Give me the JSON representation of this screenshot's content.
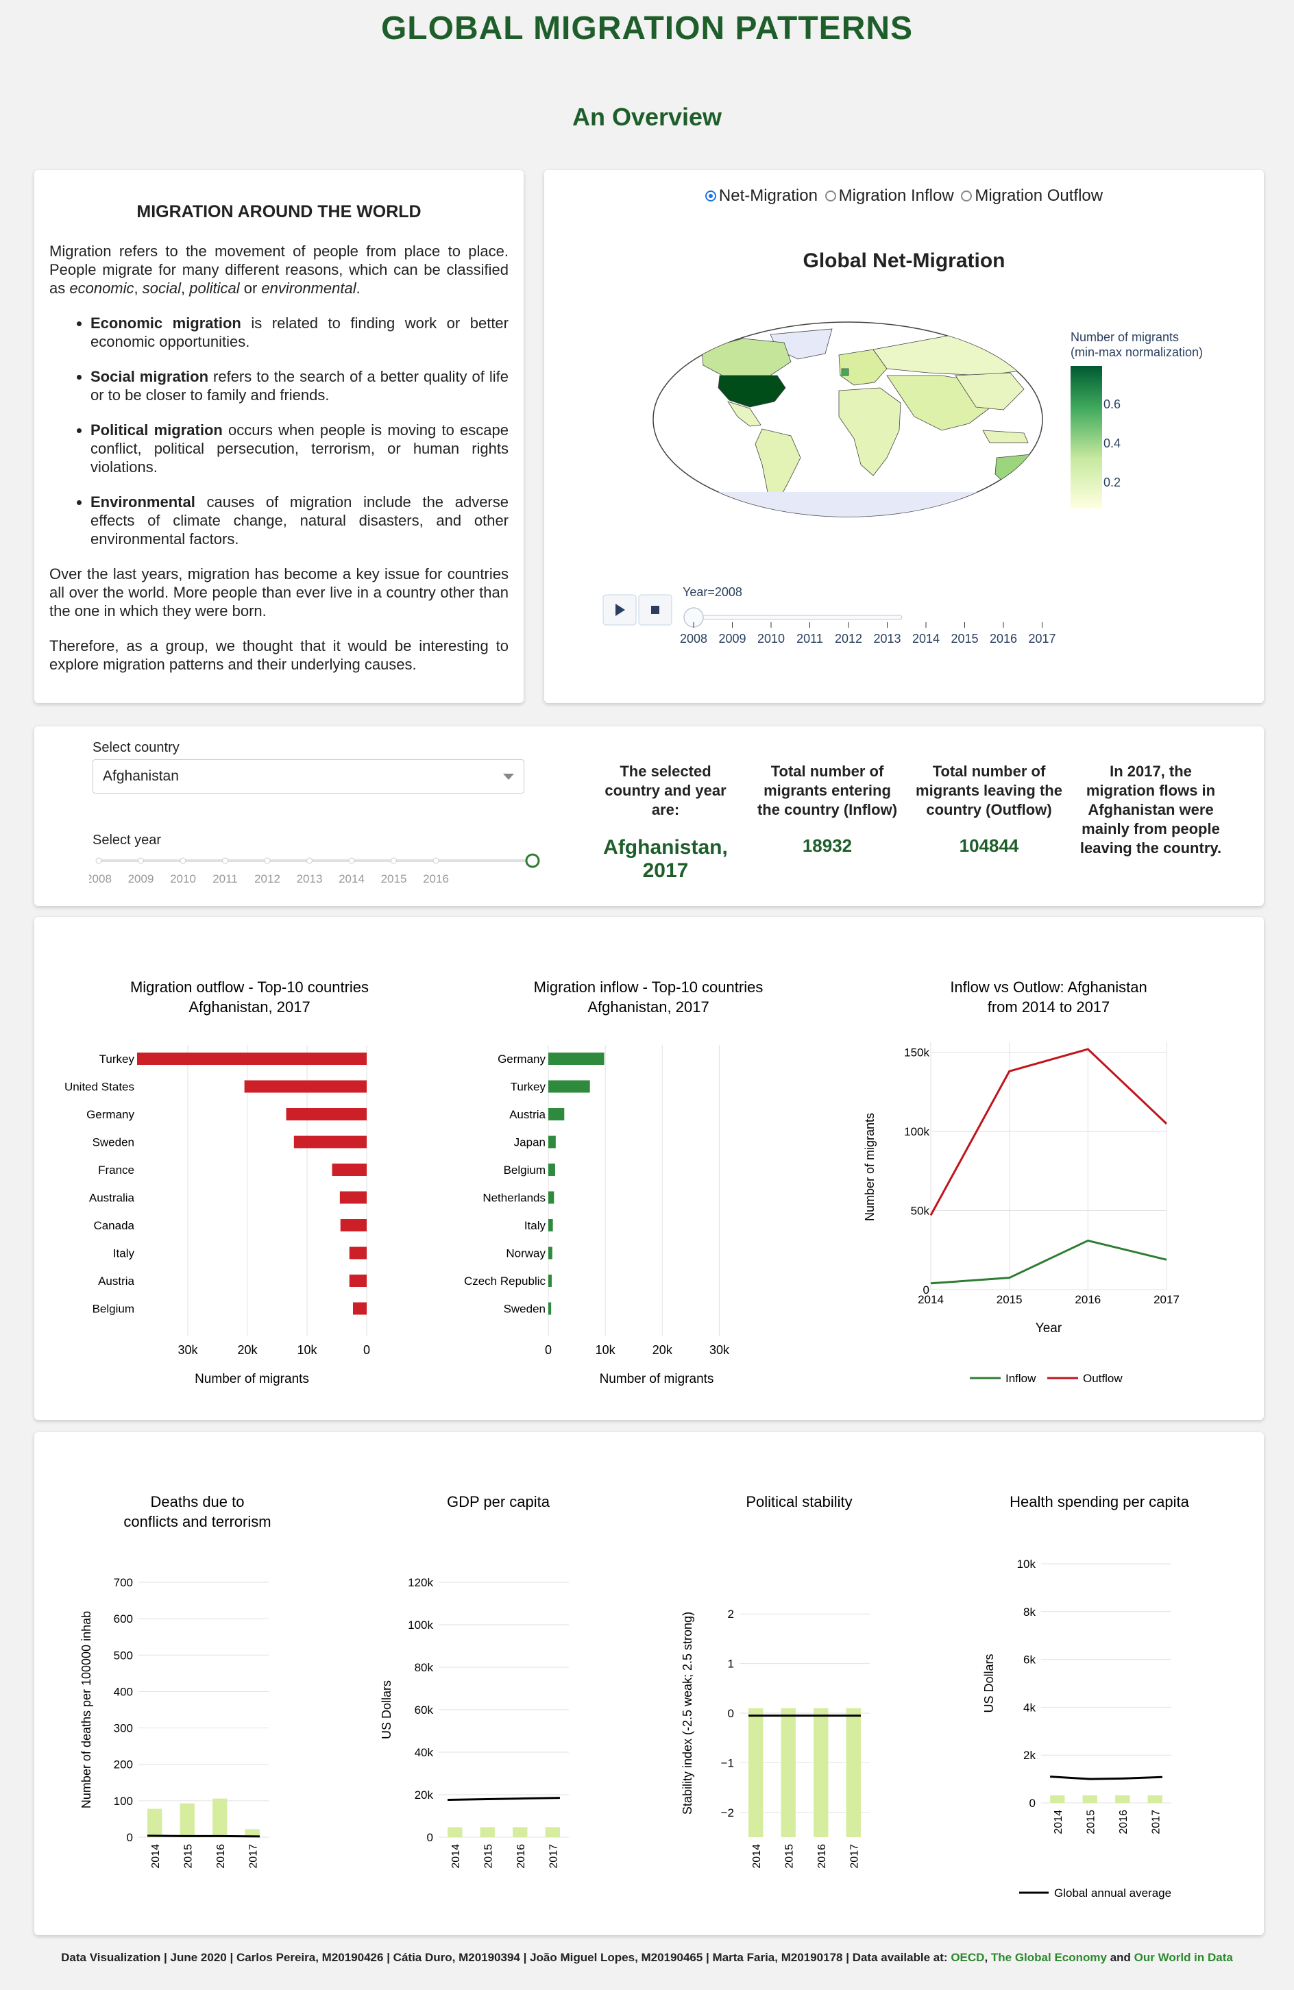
{
  "header": {
    "title": "GLOBAL MIGRATION PATTERNS",
    "subtitle": "An Overview"
  },
  "intro": {
    "heading": "MIGRATION AROUND THE WORLD",
    "p1_a": "Migration refers to the movement of people from place to place. People migrate for many different reasons, which can be classified as ",
    "p1_b1": "economic",
    "p1_sep1": ", ",
    "p1_b2": "social",
    "p1_sep2": ", ",
    "p1_b3": "political",
    "p1_sep3": " or ",
    "p1_b4": "environmental",
    "p1_end": ".",
    "bullets": [
      {
        "bold": "Economic migration",
        "text": " is related to finding work or better economic opportunities."
      },
      {
        "bold": "Social migration",
        "text": " refers to the search of a better quality of life or to be closer to family and friends."
      },
      {
        "bold": "Political migration",
        "text": " occurs when people is moving to escape conflict, political persecution, terrorism, or human rights violations."
      },
      {
        "bold": "Environmental",
        "text": " causes of migration include the adverse effects of climate change, natural disasters, and other environmental factors."
      }
    ],
    "p2": "Over the last years, migration has become a key issue for countries all over the world. More people than ever live in a country other than the one in which they were born.",
    "p3": "Therefore, as a group, we thought that it would be interesting to explore migration patterns and their underlying causes."
  },
  "map": {
    "radio_options": [
      "Net-Migration",
      "Migration Inflow",
      "Migration Outflow"
    ],
    "radio_selected": 0,
    "title": "Global Net-Migration",
    "colorbar_title_1": "Number of migrants",
    "colorbar_title_2": "(min-max normalization)",
    "colorbar_ticks": [
      "0.6",
      "0.4",
      "0.2"
    ],
    "year_label": "Year=2008",
    "slider_years": [
      "2008",
      "2009",
      "2010",
      "2011",
      "2012",
      "2013",
      "2014",
      "2015",
      "2016",
      "2017"
    ],
    "play_icon": "play-icon",
    "stop_icon": "stop-icon"
  },
  "filters": {
    "country_label": "Select country",
    "country_value": "Afghanistan",
    "year_label": "Select year",
    "years": [
      "2008",
      "2009",
      "2010",
      "2011",
      "2012",
      "2013",
      "2014",
      "2015",
      "2016"
    ],
    "selected_year": "2017"
  },
  "kpis": {
    "selected_label": "The selected country and year are:",
    "selected_value": "Afghanistan, 2017",
    "inflow_label": "Total number of migrants entering the country (Inflow)",
    "inflow_value": "18932",
    "outflow_label": "Total number of migrants leaving the country (Outflow)",
    "outflow_value": "104844",
    "summary": "In 2017, the migration flows in Afghanistan were mainly from people leaving the country."
  },
  "chart_data": [
    {
      "type": "bar",
      "orientation": "horizontal",
      "title": "Migration outflow - Top-10 countries",
      "subtitle": "Afghanistan, 2017",
      "xlabel": "Number of migrants",
      "x_reversed": true,
      "categories": [
        "Turkey",
        "United States",
        "Germany",
        "Sweden",
        "France",
        "Australia",
        "Canada",
        "Italy",
        "Austria",
        "Belgium"
      ],
      "values": [
        38500,
        20500,
        13500,
        12200,
        5800,
        4500,
        4400,
        2900,
        2900,
        2300
      ],
      "xlim": [
        0,
        38500
      ],
      "ticks": [
        "30k",
        "20k",
        "10k",
        "0"
      ],
      "color": "#cc1f28"
    },
    {
      "type": "bar",
      "orientation": "horizontal",
      "title": "Migration inflow - Top-10 countries",
      "subtitle": "Afghanistan, 2017",
      "xlabel": "Number of migrants",
      "categories": [
        "Germany",
        "Turkey",
        "Austria",
        "Japan",
        "Belgium",
        "Netherlands",
        "Italy",
        "Norway",
        "Czech Republic",
        "Sweden"
      ],
      "values": [
        9800,
        7300,
        2800,
        1300,
        1200,
        1000,
        800,
        700,
        600,
        500
      ],
      "xlim": [
        0,
        38000
      ],
      "ticks": [
        "0",
        "10k",
        "20k",
        "30k"
      ],
      "color": "#2e8b3e"
    },
    {
      "type": "line",
      "title": "Inflow vs Outlow: Afghanistan",
      "subtitle": "from 2014 to 2017",
      "xlabel": "Year",
      "ylabel": "Number of migrants",
      "x": [
        "2014",
        "2015",
        "2016",
        "2017"
      ],
      "ylim": [
        0,
        152000
      ],
      "yticks": [
        "0",
        "50k",
        "100k",
        "150k"
      ],
      "series": [
        {
          "name": "Inflow",
          "values": [
            4000,
            7500,
            31000,
            18932
          ],
          "color": "#2e7d32"
        },
        {
          "name": "Outflow",
          "values": [
            47000,
            138000,
            152000,
            104844
          ],
          "color": "#c0141c"
        }
      ]
    },
    {
      "type": "bar",
      "title": "Deaths due to",
      "subtitle": "conflicts and terrorism",
      "ylabel": "Number of deaths per 100000 inhab",
      "categories": [
        "2014",
        "2015",
        "2016",
        "2017"
      ],
      "values": [
        78,
        93,
        106,
        22
      ],
      "average": [
        4,
        3,
        3,
        2
      ],
      "ylim": [
        0,
        700
      ],
      "yticks": [
        "0",
        "100",
        "200",
        "300",
        "400",
        "500",
        "600",
        "700"
      ]
    },
    {
      "type": "bar",
      "title": "GDP per capita",
      "subtitle": "",
      "ylabel": "US Dollars",
      "categories": [
        "2014",
        "2015",
        "2016",
        "2017"
      ],
      "values": [
        4700,
        4700,
        4700,
        4700
      ],
      "average": [
        17600,
        17900,
        18200,
        18500
      ],
      "ylim": [
        0,
        120000
      ],
      "yticks": [
        "0",
        "20k",
        "40k",
        "60k",
        "80k",
        "100k",
        "120k"
      ]
    },
    {
      "type": "bar",
      "title": "Political stability",
      "subtitle": "",
      "ylabel": "Stability index (-2.5 weak; 2.5 strong)",
      "categories": [
        "2014",
        "2015",
        "2016",
        "2017"
      ],
      "values": [
        -2.5,
        -2.5,
        -2.5,
        -2.5
      ],
      "top": [
        0.1,
        0.1,
        0.1,
        0.1
      ],
      "average": [
        -0.05,
        -0.05,
        -0.05,
        -0.05
      ],
      "ylim": [
        -2.5,
        2.5
      ],
      "yticks": [
        "−2",
        "−1",
        "0",
        "1",
        "2"
      ]
    },
    {
      "type": "bar",
      "title": "Health spending per capita",
      "subtitle": "",
      "ylabel": "US Dollars",
      "categories": [
        "2014",
        "2015",
        "2016",
        "2017"
      ],
      "values": [
        320,
        320,
        320,
        320
      ],
      "average": [
        1100,
        1000,
        1020,
        1080
      ],
      "ylim": [
        0,
        10000
      ],
      "yticks": [
        "0",
        "2k",
        "4k",
        "6k",
        "8k",
        "10k"
      ],
      "legend": "Global annual average"
    }
  ],
  "footer": {
    "text": "Data Visualization | June 2020 | Carlos Pereira, M20190426 | Cátia Duro, M20190394 | João Miguel Lopes, M20190465 | Marta Faria, M20190178 | Data available at: ",
    "link1": "OECD",
    "sep1": ", ",
    "link2": "The Global Economy",
    "sep2": " and ",
    "link3": "Our World in Data"
  }
}
